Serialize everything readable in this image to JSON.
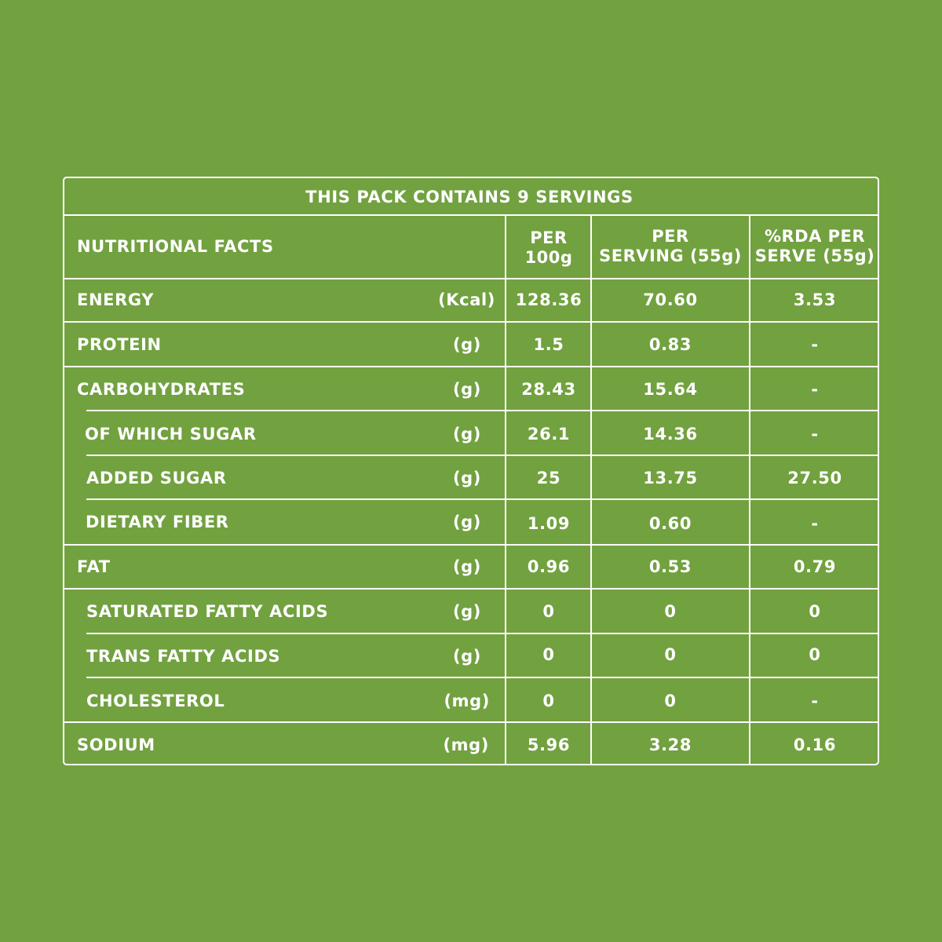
{
  "table": {
    "servings_title": "THIS PACK CONTAINS 9 SERVINGS",
    "header": {
      "label": "NUTRITIONAL FACTS",
      "per_100g": [
        "PER",
        "100g"
      ],
      "per_serving": [
        "PER",
        "SERVING (55g)"
      ],
      "rda": [
        "%RDA PER",
        "SERVE (55g)"
      ]
    },
    "rows": [
      {
        "name": "ENERGY",
        "unit": "(Kcal)",
        "per_100g": "128.36",
        "per_serving": "70.60",
        "rda": "3.53"
      },
      {
        "name": "PROTEIN",
        "unit": "(g)",
        "per_100g": "1.5",
        "per_serving": "0.83",
        "rda": "-"
      },
      {
        "name": "CARBOHYDRATES",
        "unit": "(g)",
        "per_100g": "28.43",
        "per_serving": "15.64",
        "rda": "-"
      },
      {
        "name": "OF WHICH SUGAR",
        "unit": "(g)",
        "per_100g": "26.1",
        "per_serving": "14.36",
        "rda": "-"
      },
      {
        "name": "ADDED SUGAR",
        "unit": "(g)",
        "per_100g": "25",
        "per_serving": "13.75",
        "rda": "27.50"
      },
      {
        "name": "DIETARY FIBER",
        "unit": "(g)",
        "per_100g": "1.09",
        "per_serving": "0.60",
        "rda": "-"
      },
      {
        "name": "FAT",
        "unit": "(g)",
        "per_100g": "0.96",
        "per_serving": "0.53",
        "rda": "0.79"
      },
      {
        "name": "SATURATED FATTY ACIDS",
        "unit": "(g)",
        "per_100g": "0",
        "per_serving": "0",
        "rda": "0"
      },
      {
        "name": "TRANS FATTY ACIDS",
        "unit": "(g)",
        "per_100g": "0",
        "per_serving": "0",
        "rda": "0"
      },
      {
        "name": "CHOLESTEROL",
        "unit": "(mg)",
        "per_100g": "0",
        "per_serving": "0",
        "rda": "-"
      },
      {
        "name": "SODIUM",
        "unit": "(mg)",
        "per_100g": "5.96",
        "per_serving": "3.28",
        "rda": "0.16"
      }
    ]
  },
  "colors": {
    "background": "#72a140",
    "text": "#ffffff",
    "lines": "#ffffff"
  }
}
